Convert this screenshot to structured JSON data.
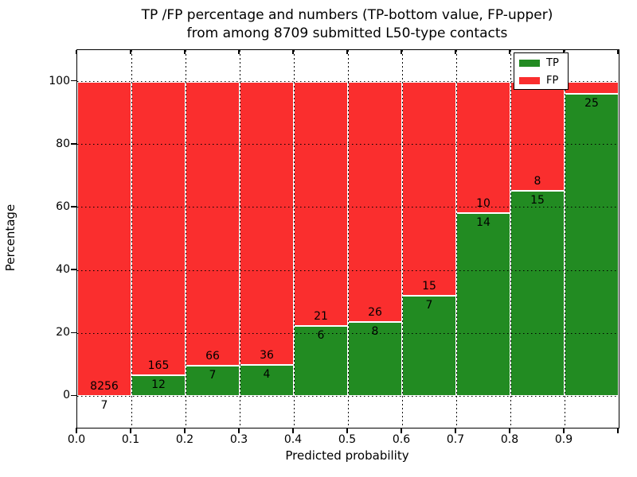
{
  "title": {
    "line1": "TP /FP percentage and numbers (TP-bottom value, FP-upper)",
    "line2": "from among 8709 submitted L50-type contacts"
  },
  "axes": {
    "xlabel": "Predicted probability",
    "ylabel": "Percentage",
    "xticks": [
      {
        "v": 0.0,
        "label": "0.0"
      },
      {
        "v": 0.1,
        "label": "0.1"
      },
      {
        "v": 0.2,
        "label": "0.2"
      },
      {
        "v": 0.3,
        "label": "0.3"
      },
      {
        "v": 0.4,
        "label": "0.4"
      },
      {
        "v": 0.5,
        "label": "0.5"
      },
      {
        "v": 0.6,
        "label": "0.6"
      },
      {
        "v": 0.7,
        "label": "0.7"
      },
      {
        "v": 0.8,
        "label": "0.8"
      },
      {
        "v": 0.9,
        "label": "0.9"
      },
      {
        "v": 1.0,
        "label": ""
      }
    ],
    "yticks": [
      {
        "v": 0,
        "label": "0"
      },
      {
        "v": 20,
        "label": "20"
      },
      {
        "v": 40,
        "label": "40"
      },
      {
        "v": 60,
        "label": "60"
      },
      {
        "v": 80,
        "label": "80"
      },
      {
        "v": 100,
        "label": "100"
      }
    ]
  },
  "legend": {
    "entries": [
      {
        "label": "TP",
        "color": "#228B22"
      },
      {
        "label": "FP",
        "color": "#FA2E2E"
      }
    ],
    "position": "upper right"
  },
  "colors": {
    "tp": "#228B22",
    "fp": "#FA2E2E",
    "grid": "#000000",
    "background": "#ffffff"
  },
  "chart_data": {
    "type": "bar",
    "stacked": true,
    "orientation": "vertical",
    "title": "TP /FP percentage and numbers (TP-bottom value, FP-upper) from among 8709 submitted L50-type contacts",
    "xlabel": "Predicted probability",
    "ylabel": "Percentage",
    "xlim": [
      0.0,
      1.0
    ],
    "ylim": [
      -10,
      110
    ],
    "grid": "dotted both axes at major ticks",
    "note": "Each bar spans a 0.1-wide predicted-probability bin; TP (green) bottom segment and FP (red) top segment sum to 100%. Numeric labels show raw counts: TP below the segment boundary, FP above it. FP count label of the last bin is hidden behind the legend.",
    "bins": [
      {
        "x0": 0.0,
        "x1": 0.1,
        "tp": 7,
        "fp": 8256,
        "tp_label": "7",
        "fp_label": "8256",
        "tp_pct": 0.08,
        "fp_pct": 99.92
      },
      {
        "x0": 0.1,
        "x1": 0.2,
        "tp": 12,
        "fp": 165,
        "tp_label": "12",
        "fp_label": "165",
        "tp_pct": 6.78,
        "fp_pct": 93.22
      },
      {
        "x0": 0.2,
        "x1": 0.3,
        "tp": 7,
        "fp": 66,
        "tp_label": "7",
        "fp_label": "66",
        "tp_pct": 9.59,
        "fp_pct": 90.41
      },
      {
        "x0": 0.3,
        "x1": 0.4,
        "tp": 4,
        "fp": 36,
        "tp_label": "4",
        "fp_label": "36",
        "tp_pct": 10.0,
        "fp_pct": 90.0
      },
      {
        "x0": 0.4,
        "x1": 0.5,
        "tp": 6,
        "fp": 21,
        "tp_label": "6",
        "fp_label": "21",
        "tp_pct": 22.22,
        "fp_pct": 77.78
      },
      {
        "x0": 0.5,
        "x1": 0.6,
        "tp": 8,
        "fp": 26,
        "tp_label": "8",
        "fp_label": "26",
        "tp_pct": 23.53,
        "fp_pct": 76.47
      },
      {
        "x0": 0.6,
        "x1": 0.7,
        "tp": 7,
        "fp": 15,
        "tp_label": "7",
        "fp_label": "15",
        "tp_pct": 31.82,
        "fp_pct": 68.18
      },
      {
        "x0": 0.7,
        "x1": 0.8,
        "tp": 14,
        "fp": 10,
        "tp_label": "14",
        "fp_label": "10",
        "tp_pct": 58.33,
        "fp_pct": 41.67
      },
      {
        "x0": 0.8,
        "x1": 0.9,
        "tp": 15,
        "fp": 8,
        "tp_label": "15",
        "fp_label": "8",
        "tp_pct": 65.22,
        "fp_pct": 34.78
      },
      {
        "x0": 0.9,
        "x1": 1.0,
        "tp": 25,
        "fp": null,
        "tp_label": "25",
        "fp_label": "",
        "tp_pct": 96.15,
        "fp_pct": 3.85
      }
    ]
  }
}
